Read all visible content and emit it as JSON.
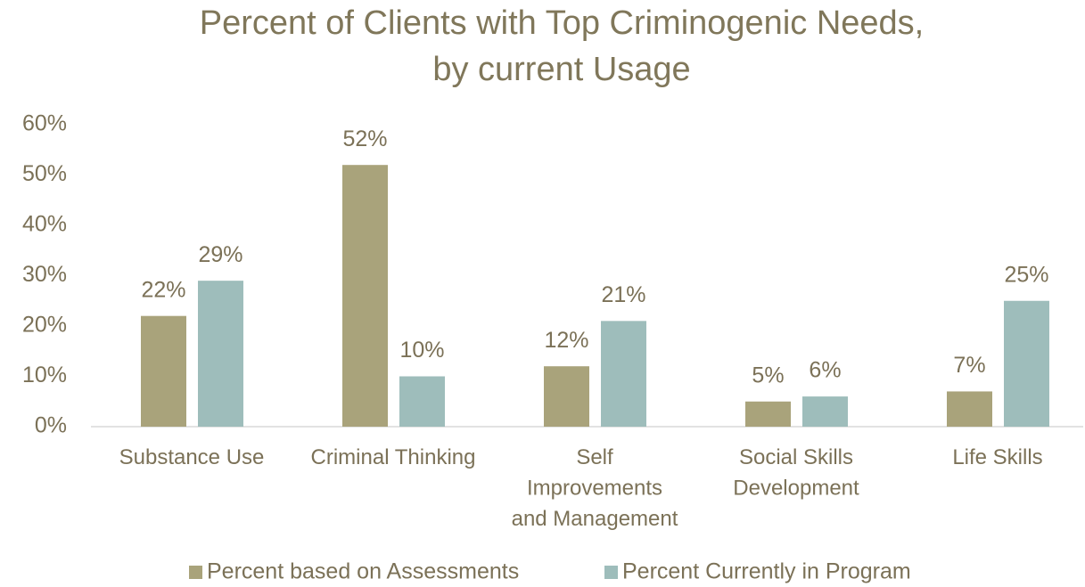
{
  "chart_data": {
    "type": "bar",
    "title": [
      "Percent of Clients with Top Criminogenic Needs,",
      "by current Usage"
    ],
    "categories": [
      "Substance Use",
      "Criminal Thinking",
      "Self Improvements and Management",
      "Social Skills Development",
      "Life Skills"
    ],
    "series": [
      {
        "name": "Percent based on Assessments",
        "color": "#a9a37b",
        "values": [
          22,
          52,
          12,
          5,
          7
        ],
        "value_labels": [
          "22%",
          "52%",
          "12%",
          "5%",
          "7%"
        ]
      },
      {
        "name": "Percent Currently in Program",
        "color": "#9ebdbb",
        "values": [
          29,
          10,
          21,
          6,
          25
        ],
        "value_labels": [
          "29%",
          "10%",
          "21%",
          "6%",
          "25%"
        ]
      }
    ],
    "ylim": [
      0,
      60
    ],
    "yticks": [
      {
        "value": 0,
        "label": "0%"
      },
      {
        "value": 10,
        "label": "10%"
      },
      {
        "value": 20,
        "label": "20%"
      },
      {
        "value": 30,
        "label": "30%"
      },
      {
        "value": 40,
        "label": "40%"
      },
      {
        "value": 50,
        "label": "50%"
      },
      {
        "value": 60,
        "label": "60%"
      }
    ],
    "grid": false,
    "legend": "bottom"
  }
}
